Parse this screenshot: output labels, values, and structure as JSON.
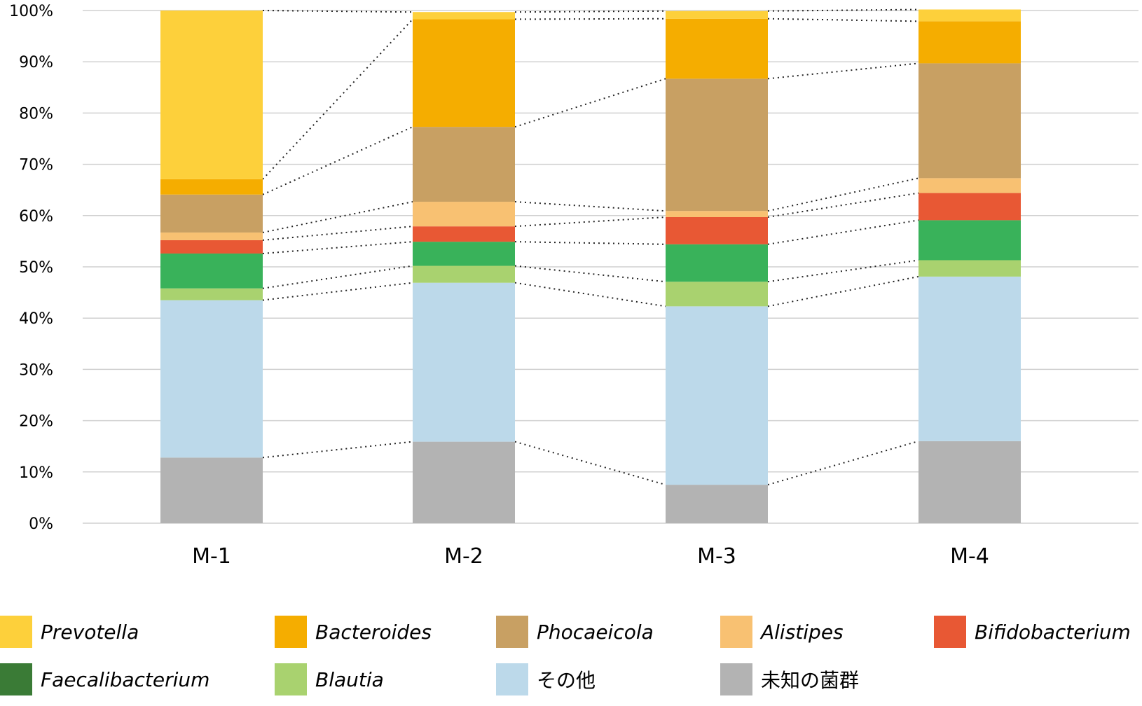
{
  "chart_data": {
    "type": "bar",
    "stacked": true,
    "percent": true,
    "ylim": [
      0,
      100
    ],
    "yticks": [
      "0%",
      "10%",
      "20%",
      "30%",
      "40%",
      "50%",
      "60%",
      "70%",
      "80%",
      "90%",
      "100%"
    ],
    "grid": true,
    "legend_position": "bottom",
    "categories": [
      "M-1",
      "M-2",
      "M-3",
      "M-4"
    ],
    "series": [
      {
        "name": "未知の菌群",
        "color": "#b3b3b3",
        "italic": false,
        "values": [
          12.8,
          15.9,
          7.5,
          16.0
        ]
      },
      {
        "name": "その他",
        "color": "#bcd9ea",
        "italic": false,
        "values": [
          30.7,
          31.0,
          34.8,
          32.1
        ]
      },
      {
        "name": "Blautia",
        "color": "#a9d26f",
        "italic": true,
        "values": [
          2.3,
          3.3,
          4.8,
          3.2
        ]
      },
      {
        "name": "Faecalibacterium",
        "color": "#3a7b36",
        "italic": true,
        "values": [
          0.0,
          0.0,
          0.0,
          0.0
        ]
      },
      {
        "name": "Bifidobacterium",
        "color": "#e85834",
        "italic": true,
        "values": [
          2.6,
          3.0,
          5.3,
          5.3
        ]
      },
      {
        "name": "Alistipes",
        "color": "#f8c172",
        "italic": true,
        "values": [
          1.5,
          4.8,
          1.2,
          2.9
        ]
      },
      {
        "name": "Phocaeicola",
        "color": "#c8a063",
        "italic": true,
        "values": [
          7.4,
          14.6,
          25.8,
          22.4
        ]
      },
      {
        "name": "Bacteroides",
        "color": "#f5ad00",
        "italic": true,
        "values": [
          3.0,
          21.0,
          11.7,
          8.2
        ]
      },
      {
        "name": "Prevotella",
        "color": "#fdd03b",
        "italic": true,
        "values": [
          32.9,
          1.4,
          1.5,
          2.3
        ]
      }
    ],
    "green_band": {
      "color": "#39b25a",
      "values": [
        6.8,
        4.7,
        7.3,
        7.8
      ]
    }
  },
  "legend": [
    {
      "label": "Prevotella",
      "color": "#fdd03b",
      "italic": true
    },
    {
      "label": "Bacteroides",
      "color": "#f5ad00",
      "italic": true
    },
    {
      "label": "Phocaeicola",
      "color": "#c8a063",
      "italic": true
    },
    {
      "label": "Alistipes",
      "color": "#f8c172",
      "italic": true
    },
    {
      "label": "Bifidobacterium",
      "color": "#e85834",
      "italic": true
    },
    {
      "label": "Faecalibacterium",
      "color": "#3a7b36",
      "italic": true
    },
    {
      "label": "Blautia",
      "color": "#a9d26f",
      "italic": true
    },
    {
      "label": "その他",
      "color": "#bcd9ea",
      "italic": false
    },
    {
      "label": "未知の菌群",
      "color": "#b3b3b3",
      "italic": false
    }
  ]
}
